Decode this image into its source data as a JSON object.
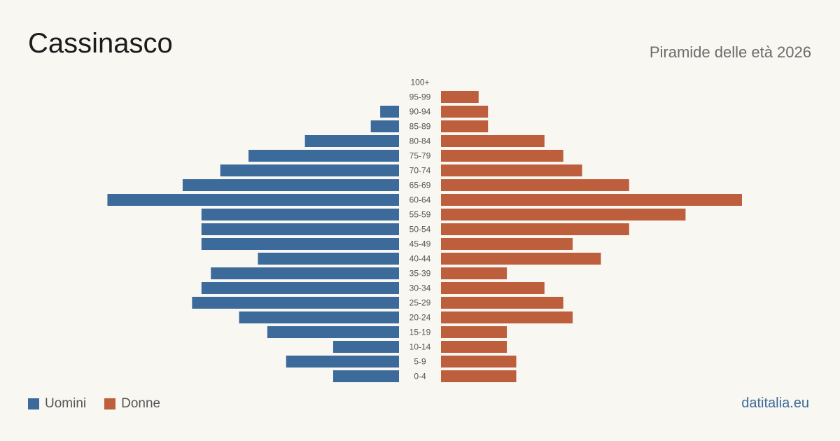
{
  "title": "Cassinasco",
  "subtitle": "Piramide delle età 2026",
  "source": "datitalia.eu",
  "colors": {
    "men": "#3b6a9b",
    "women": "#bd5e3c",
    "background": "#f9f7f2"
  },
  "chart_data": {
    "type": "bar",
    "orientation": "horizontal",
    "layout": "population-pyramid",
    "categories": [
      "100+",
      "95-99",
      "90-94",
      "85-89",
      "80-84",
      "75-79",
      "70-74",
      "65-69",
      "60-64",
      "55-59",
      "50-54",
      "45-49",
      "40-44",
      "35-39",
      "30-34",
      "25-29",
      "20-24",
      "15-19",
      "10-14",
      "5-9",
      "0-4"
    ],
    "series": [
      {
        "name": "Uomini",
        "side": "left",
        "values": [
          0,
          0,
          2,
          3,
          10,
          16,
          19,
          23,
          31,
          21,
          21,
          21,
          15,
          20,
          21,
          22,
          17,
          14,
          7,
          12,
          7
        ]
      },
      {
        "name": "Donne",
        "side": "right",
        "values": [
          0,
          4,
          5,
          5,
          11,
          13,
          15,
          20,
          32,
          26,
          20,
          14,
          17,
          7,
          11,
          13,
          14,
          7,
          7,
          8,
          8
        ]
      }
    ],
    "legend_position": "bottom-left",
    "grid": false
  }
}
